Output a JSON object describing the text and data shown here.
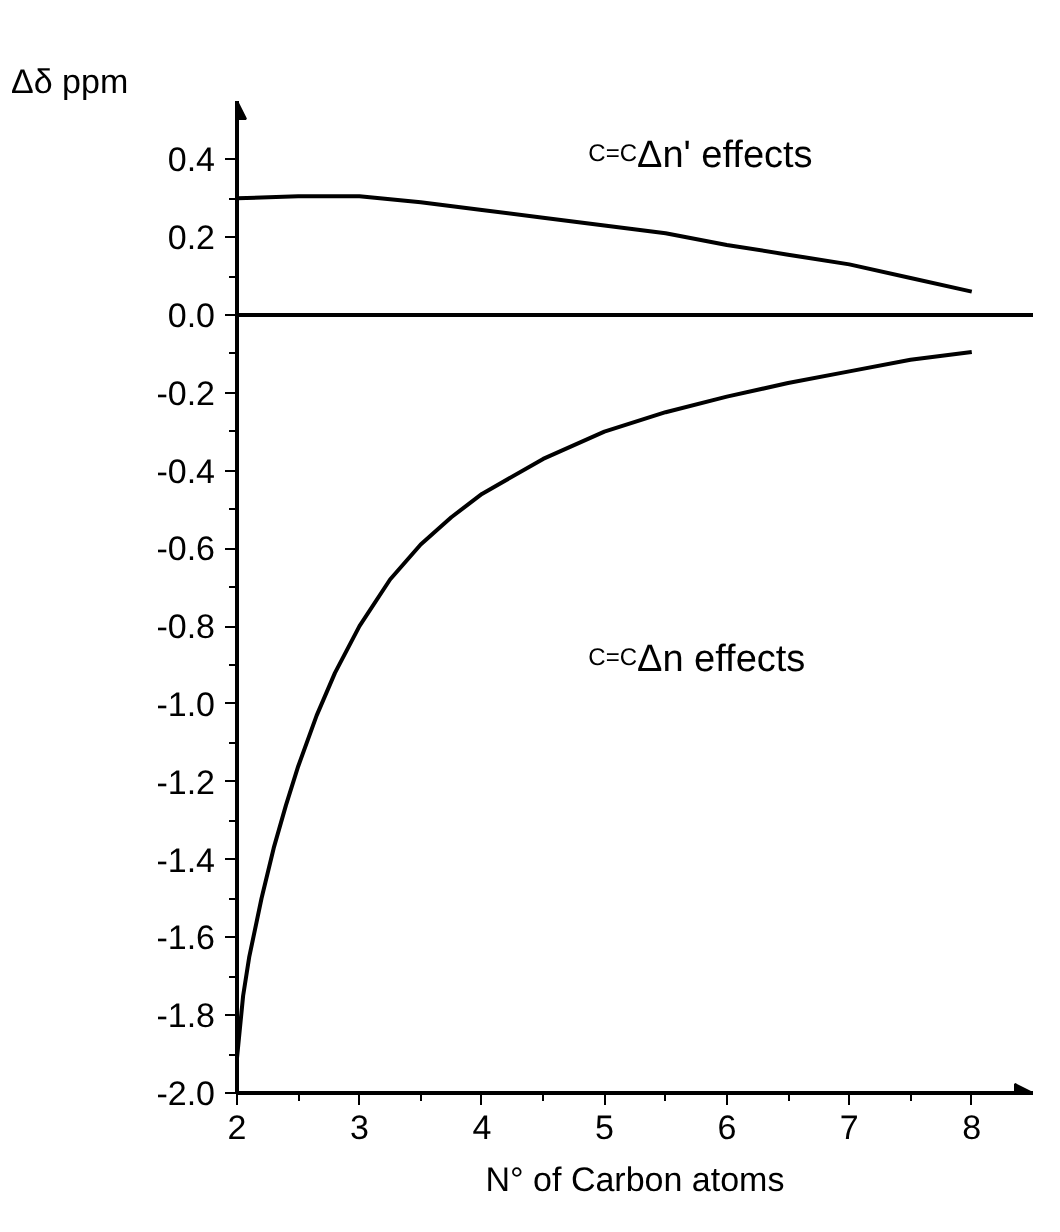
{
  "chart_data": {
    "type": "line",
    "xlabel": "N° of Carbon atoms",
    "ylabel": "Δδ ppm",
    "xlim": [
      2,
      8.5
    ],
    "ylim": [
      -2.0,
      0.55
    ],
    "xticks": [
      2,
      {
        "value": 2.5,
        "label": null
      },
      3,
      {
        "value": 3.5,
        "label": null
      },
      4,
      {
        "value": 4.5,
        "label": null
      },
      5,
      {
        "value": 5.5,
        "label": null
      },
      6,
      {
        "value": 6.5,
        "label": null
      },
      7,
      {
        "value": 7.5,
        "label": null
      },
      8
    ],
    "yticks": [
      {
        "value": -2.0,
        "label": "-2.0"
      },
      {
        "value": -1.9,
        "label": null
      },
      {
        "value": -1.8,
        "label": "-1.8"
      },
      {
        "value": -1.7,
        "label": null
      },
      {
        "value": -1.6,
        "label": "-1.6"
      },
      {
        "value": -1.5,
        "label": null
      },
      {
        "value": -1.4,
        "label": "-1.4"
      },
      {
        "value": -1.3,
        "label": null
      },
      {
        "value": -1.2,
        "label": "-1.2"
      },
      {
        "value": -1.1,
        "label": null
      },
      {
        "value": -1.0,
        "label": "-1.0"
      },
      {
        "value": -0.9,
        "label": null
      },
      {
        "value": -0.8,
        "label": "-0.8"
      },
      {
        "value": -0.7,
        "label": null
      },
      {
        "value": -0.6,
        "label": "-0.6"
      },
      {
        "value": -0.5,
        "label": null
      },
      {
        "value": -0.4,
        "label": "-0.4"
      },
      {
        "value": -0.3,
        "label": null
      },
      {
        "value": -0.2,
        "label": "-0.2"
      },
      {
        "value": -0.1,
        "label": null
      },
      {
        "value": 0.0,
        "label": "0.0"
      },
      {
        "value": 0.1,
        "label": null
      },
      {
        "value": 0.2,
        "label": "0.2"
      },
      {
        "value": 0.3,
        "label": null
      },
      {
        "value": 0.4,
        "label": "0.4"
      }
    ],
    "grid": false,
    "marker": "none",
    "line_style": "solid",
    "ref_lines": [
      {
        "axis": "y",
        "value": 0,
        "color": "#000000"
      }
    ],
    "series": [
      {
        "color": "#000000",
        "x": [
          2,
          2.5,
          3,
          3.5,
          4,
          4.5,
          5,
          5.5,
          6,
          6.5,
          7,
          7.5,
          8
        ],
        "values": [
          0.3,
          0.305,
          0.305,
          0.29,
          0.27,
          0.25,
          0.23,
          0.21,
          0.18,
          0.155,
          0.13,
          0.095,
          0.06
        ]
      },
      {
        "color": "#000000",
        "x": [
          2,
          2.05,
          2.1,
          2.2,
          2.3,
          2.4,
          2.5,
          2.65,
          2.8,
          3,
          3.25,
          3.5,
          3.75,
          4,
          4.5,
          5,
          5.5,
          6,
          6.5,
          7,
          7.5,
          8
        ],
        "values": [
          -1.91,
          -1.75,
          -1.65,
          -1.5,
          -1.37,
          -1.26,
          -1.16,
          -1.03,
          -0.92,
          -0.8,
          -0.68,
          -0.59,
          -0.52,
          -0.46,
          -0.37,
          -0.3,
          -0.25,
          -0.21,
          -0.175,
          -0.145,
          -0.115,
          -0.095
        ]
      }
    ],
    "annotations": [
      "$^{C=C}$Δn' effects",
      "$^{C=C}$Δn effects"
    ]
  }
}
